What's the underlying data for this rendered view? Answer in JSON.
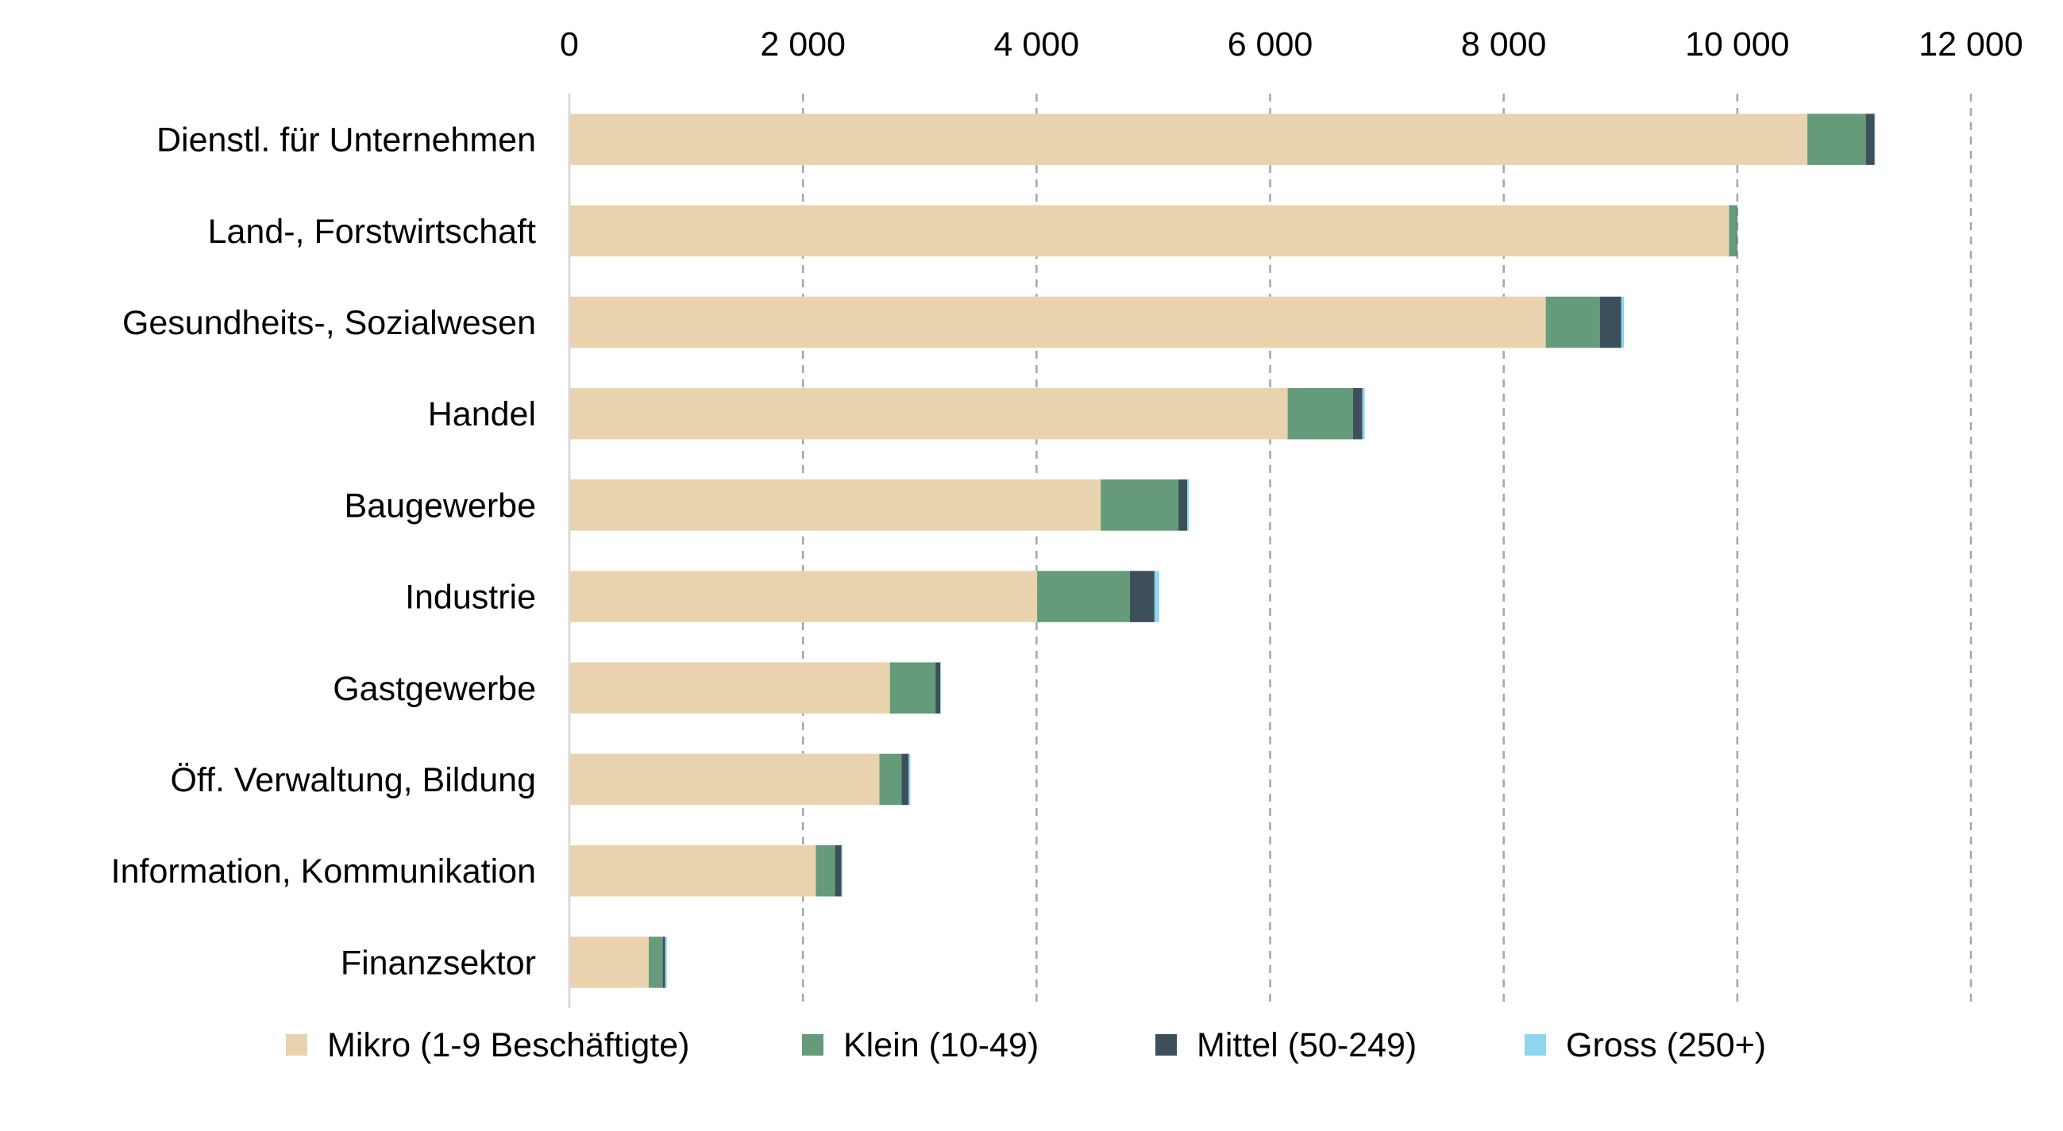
{
  "chart_data": {
    "type": "bar",
    "orientation": "horizontal",
    "stacked": true,
    "title": "",
    "xlabel": "",
    "ylabel": "",
    "xlim": [
      0,
      12000
    ],
    "x_ticks": [
      0,
      2000,
      4000,
      6000,
      8000,
      10000,
      12000
    ],
    "x_tick_labels": [
      "0",
      "2 000",
      "4 000",
      "6 000",
      "8 000",
      "10 000",
      "12 000"
    ],
    "x_axis_position": "top",
    "grid": "vertical dashed",
    "legend_position": "bottom",
    "categories": [
      "Dienstl. für Unternehmen",
      "Land-, Forstwirtschaft",
      "Gesundheits-, Sozialwesen",
      "Handel",
      "Baugewerbe",
      "Industrie",
      "Gastgewerbe",
      "Öff. Verwaltung, Bildung",
      "Information, Kommunikation",
      "Finanzsektor"
    ],
    "series": [
      {
        "name": "Mikro (1-9 Beschäftigte)",
        "color": "#e9d3ae",
        "values": [
          10600,
          9930,
          8360,
          6150,
          4550,
          4005,
          2745,
          2655,
          2110,
          680
        ]
      },
      {
        "name": "Klein (10-49)",
        "color": "#659b7a",
        "values": [
          500,
          65,
          465,
          560,
          665,
          795,
          390,
          190,
          165,
          120
        ]
      },
      {
        "name": "Mittel (50-249)",
        "color": "#3d4f5a",
        "values": [
          75,
          5,
          180,
          80,
          75,
          210,
          40,
          60,
          55,
          20
        ]
      },
      {
        "name": "Gross (250+)",
        "color": "#8dd6ef",
        "values": [
          5,
          2,
          25,
          20,
          15,
          40,
          7,
          14,
          8,
          14
        ]
      }
    ]
  }
}
